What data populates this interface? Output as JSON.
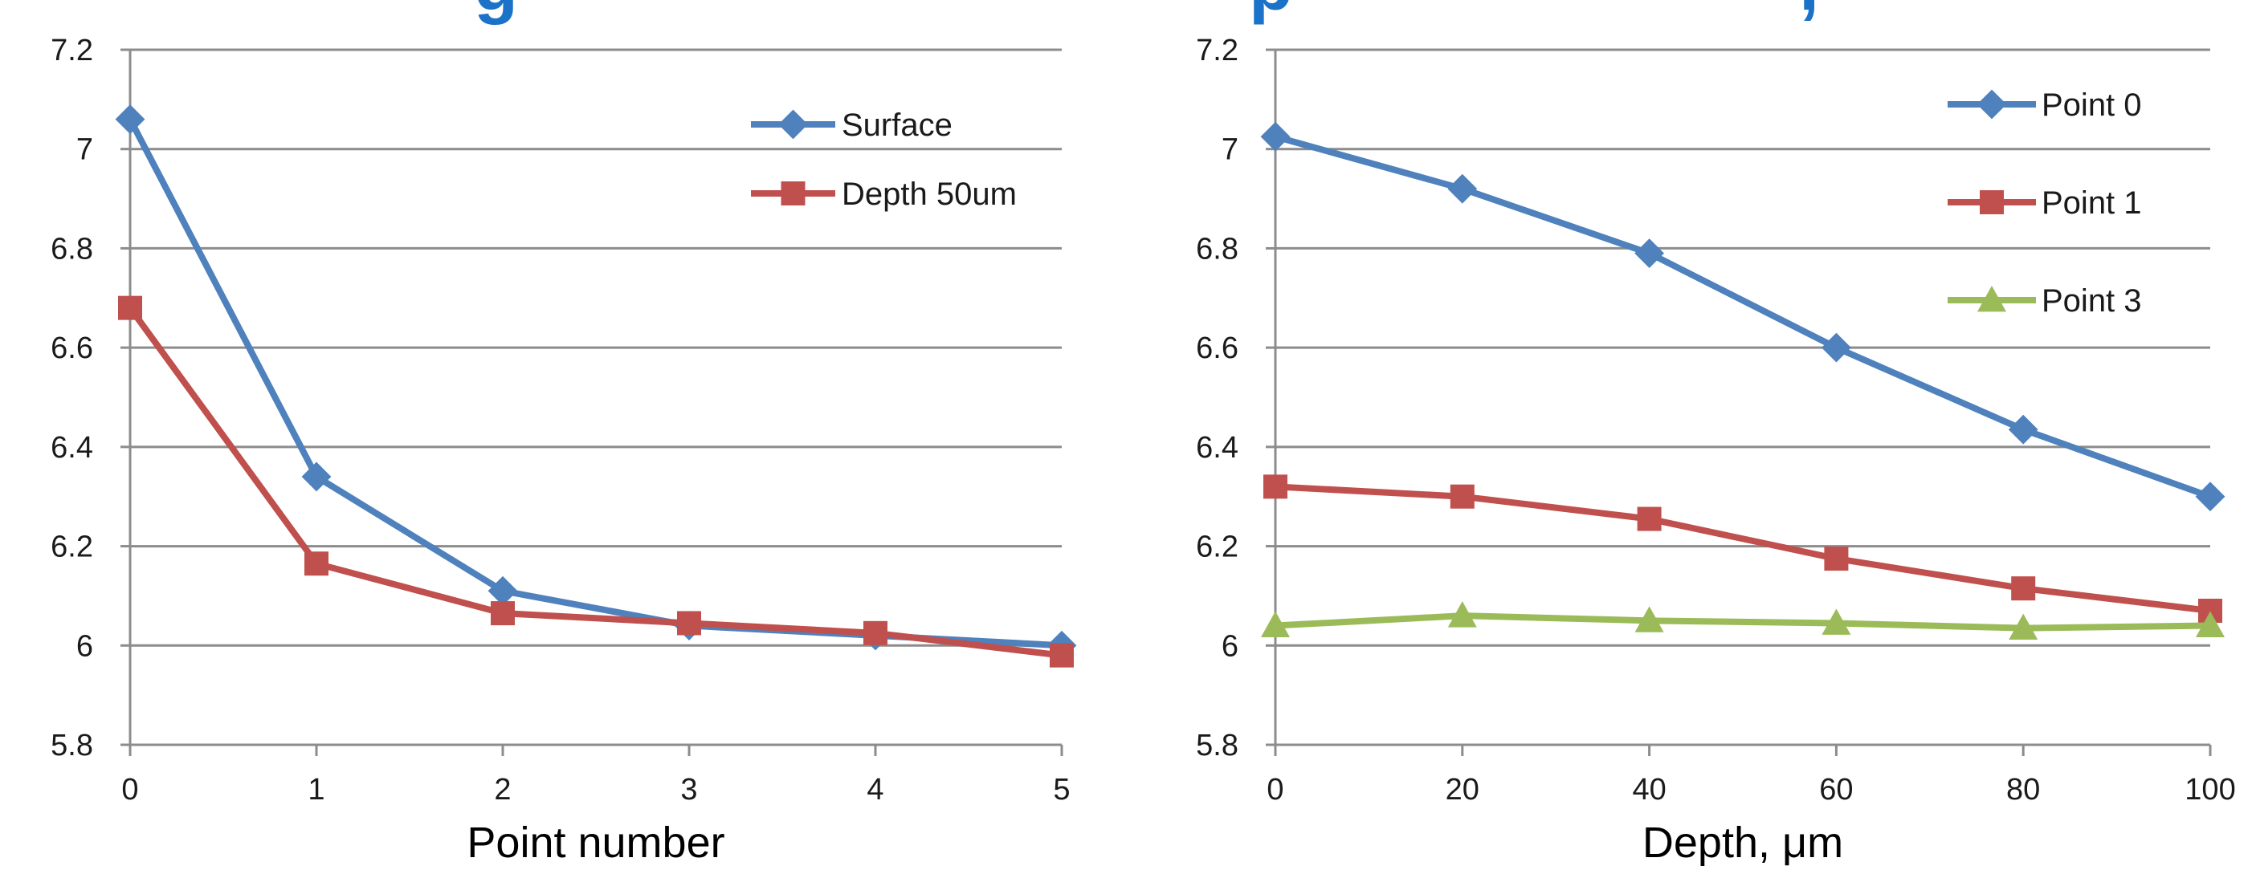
{
  "header_fragments": [
    "g",
    "p",
    ","
  ],
  "colors": {
    "banner": "#1a73c8",
    "grid": "#8c8c8c",
    "axis": "#8c8c8c",
    "blue": "#4f81bd",
    "red": "#c0504d",
    "green": "#9bbb59"
  },
  "chart_data": [
    {
      "type": "line",
      "title": "",
      "xlabel": "Point number",
      "ylabel": "",
      "x": [
        0,
        1,
        2,
        3,
        4,
        5
      ],
      "x_tick_labels": [
        "0",
        "1",
        "2",
        "3",
        "4",
        "5"
      ],
      "y_tick_labels": [
        "5.8",
        "6",
        "6.2",
        "6.4",
        "6.6",
        "6.8",
        "7",
        "7.2"
      ],
      "ylim": [
        5.8,
        7.2
      ],
      "grid": true,
      "legend_position": "top-right",
      "series": [
        {
          "name": "Surface",
          "color": "#4f81bd",
          "marker": "diamond",
          "values": [
            7.06,
            6.34,
            6.11,
            6.04,
            6.02,
            6.0
          ]
        },
        {
          "name": "Depth 50um",
          "color": "#c0504d",
          "marker": "square",
          "values": [
            6.68,
            6.165,
            6.065,
            6.045,
            6.025,
            5.98
          ]
        }
      ]
    },
    {
      "type": "line",
      "title": "",
      "xlabel": "Depth, μm",
      "ylabel": "",
      "x": [
        0,
        20,
        40,
        60,
        80,
        100
      ],
      "x_tick_labels": [
        "0",
        "20",
        "40",
        "60",
        "80",
        "100"
      ],
      "y_tick_labels": [
        "5.8",
        "6",
        "6.2",
        "6.4",
        "6.6",
        "6.8",
        "7",
        "7.2"
      ],
      "ylim": [
        5.8,
        7.2
      ],
      "grid": true,
      "legend_position": "top-right",
      "series": [
        {
          "name": "Point 0",
          "color": "#4f81bd",
          "marker": "diamond",
          "values": [
            7.025,
            6.92,
            6.79,
            6.6,
            6.435,
            6.3
          ]
        },
        {
          "name": "Point 1",
          "color": "#c0504d",
          "marker": "square",
          "values": [
            6.32,
            6.3,
            6.255,
            6.175,
            6.115,
            6.07
          ]
        },
        {
          "name": "Point 3",
          "color": "#9bbb59",
          "marker": "triangle",
          "values": [
            6.04,
            6.06,
            6.05,
            6.045,
            6.035,
            6.04
          ]
        }
      ]
    }
  ]
}
